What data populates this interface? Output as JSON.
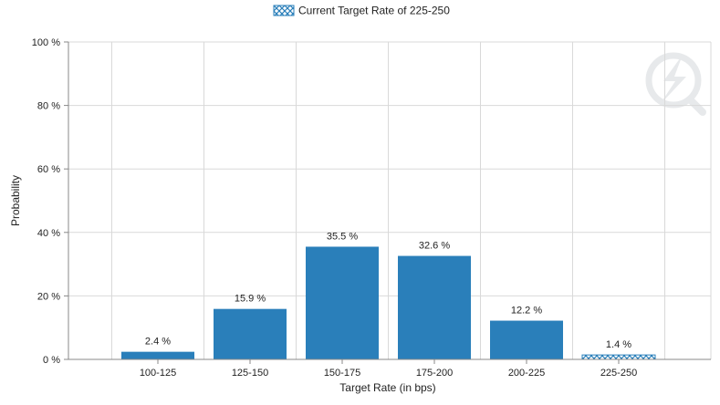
{
  "chart_data": {
    "type": "bar",
    "categories": [
      "100-125",
      "125-150",
      "150-175",
      "175-200",
      "200-225",
      "225-250"
    ],
    "values": [
      2.4,
      15.9,
      35.5,
      32.6,
      12.2,
      1.4
    ],
    "value_labels": [
      "2.4 %",
      "15.9 %",
      "35.5 %",
      "32.6 %",
      "12.2 %",
      "1.4 %"
    ],
    "highlight_index": 5,
    "xlabel": "Target Rate (in bps)",
    "ylabel": "Probability",
    "ylim": [
      0,
      100
    ],
    "yticks": [
      0,
      20,
      40,
      60,
      80,
      100
    ],
    "ytick_labels": [
      "0 %",
      "20 %",
      "40 %",
      "60 %",
      "80 %",
      "100 %"
    ],
    "legend": {
      "label": "Current Target Rate of 225-250",
      "position": "top-center"
    },
    "grid": true,
    "colors": {
      "bar": "#2a7fba",
      "grid": "#d9d9d9",
      "axis": "#888888",
      "text": "#222222",
      "hatch": "#2a7fba"
    },
    "watermark_icon": "quotes-lightning-logo-icon"
  }
}
